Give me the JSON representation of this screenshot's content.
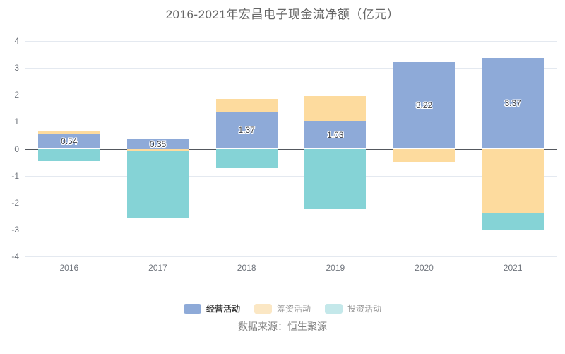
{
  "title": {
    "text": "2016-2021年宏昌电子现金流净额（亿元）",
    "color": "#666666"
  },
  "chart_data": {
    "type": "bar",
    "stacked": true,
    "title": "2016-2021年宏昌电子现金流净额（亿元）",
    "categories": [
      "2016",
      "2017",
      "2018",
      "2019",
      "2020",
      "2021"
    ],
    "series": [
      {
        "name": "经营活动",
        "color": "#8EAAD8",
        "values": [
          0.54,
          0.35,
          1.37,
          1.03,
          3.22,
          3.37
        ],
        "data_labels": [
          "0.54",
          "0.35",
          "1.37",
          "1.03",
          "3.22",
          "3.37"
        ]
      },
      {
        "name": "筹资活动",
        "color": "#FDDB9E",
        "values": [
          0.12,
          -0.1,
          0.48,
          0.93,
          -0.48,
          -2.37
        ]
      },
      {
        "name": "投资活动",
        "color": "#85D3D6",
        "values": [
          -0.45,
          -2.45,
          -0.72,
          -2.25,
          0,
          -0.63
        ]
      }
    ],
    "xlabel": "",
    "ylabel": "",
    "ylim": [
      -4,
      4
    ],
    "ytick_interval": 1,
    "grid": true,
    "legend_position": "bottom",
    "colors": {
      "gridline": "#E4E9F0",
      "zero_line": "#54585E",
      "axis_text": "#70757D",
      "value_label": "#3D4048",
      "background": "#FFFFFF"
    }
  },
  "legend": {
    "items": [
      {
        "label": "经营活动",
        "marker_color": "#8EAAD8",
        "active": true
      },
      {
        "label": "筹资活动",
        "marker_color": "#FBE7C4",
        "active": false
      },
      {
        "label": "投资活动",
        "marker_color": "#C4E8EA",
        "active": false
      }
    ]
  },
  "source": {
    "text": "数据来源：恒生聚源"
  }
}
